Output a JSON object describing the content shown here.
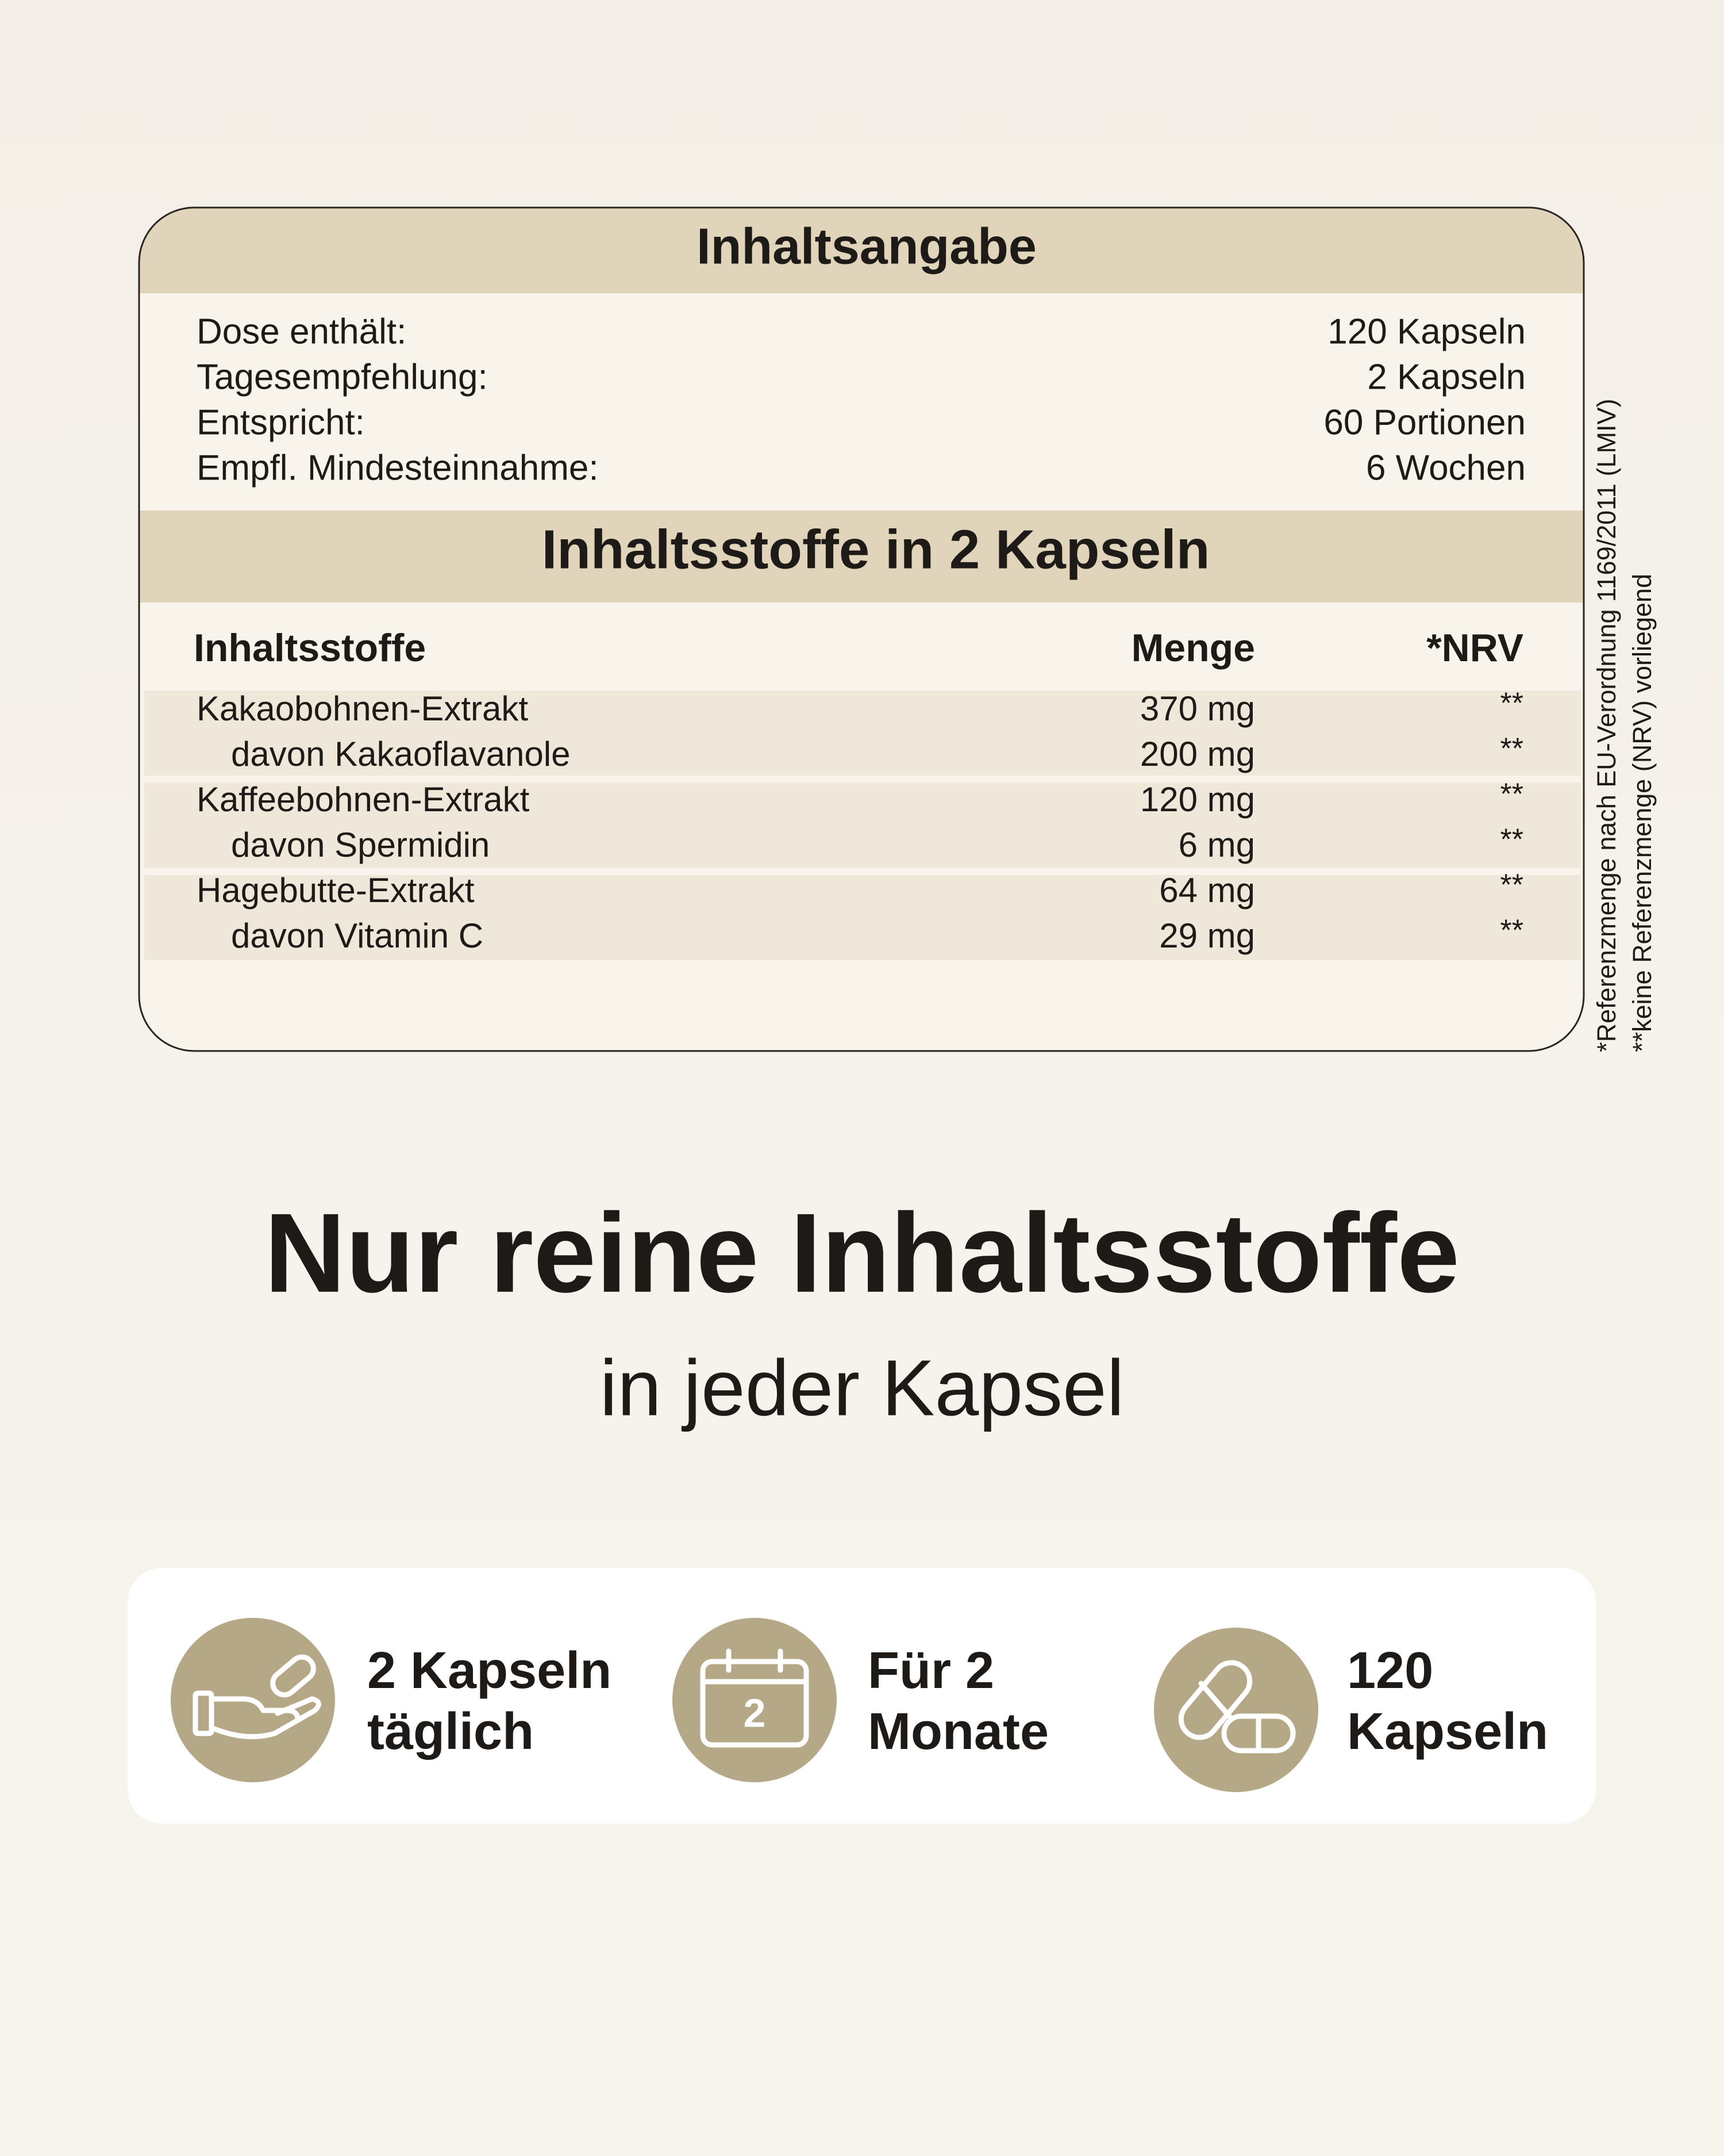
{
  "summary": {
    "title": "Inhaltsangabe",
    "rows": [
      [
        "Dose enthält:",
        "120 Kapseln"
      ],
      [
        "Tagesempfehlung:",
        "2 Kapseln"
      ],
      [
        "Entspricht:",
        "60 Portionen"
      ],
      [
        "Empfl. Mindesteinnahme:",
        "6 Wochen"
      ]
    ]
  },
  "ingredients": {
    "title": "Inhaltsstoffe in 2 Kapseln",
    "columns": [
      "Inhaltsstoffe",
      "Menge",
      "*NRV"
    ],
    "rows": [
      [
        "Kakaobohnen-Extrakt",
        "370 mg",
        "**"
      ],
      [
        "davon Kakaoflavanole",
        "200 mg",
        "**"
      ],
      [
        "Kaffeebohnen-Extrakt",
        "120 mg",
        "**"
      ],
      [
        "davon Spermidin",
        "6 mg",
        "**"
      ],
      [
        "Hagebutte-Extrakt",
        "64 mg",
        "**"
      ],
      [
        "davon Vitamin C",
        "29 mg",
        "**"
      ]
    ]
  },
  "footnotes": [
    "*Referenzmenge nach EU-Verordnung 1169/2011 (LMIV)",
    "**keine Referenzmenge (NRV) vorliegend"
  ],
  "headline": "Nur reine Inhaltsstoffe",
  "subheadline": "in jeder Kapsel",
  "features": [
    {
      "lines": [
        "2 Kapseln",
        "täglich"
      ]
    },
    {
      "lines": [
        "Für 2",
        "Monate"
      ],
      "icon_label": "2"
    },
    {
      "lines": [
        "120",
        "Kapseln"
      ]
    }
  ]
}
